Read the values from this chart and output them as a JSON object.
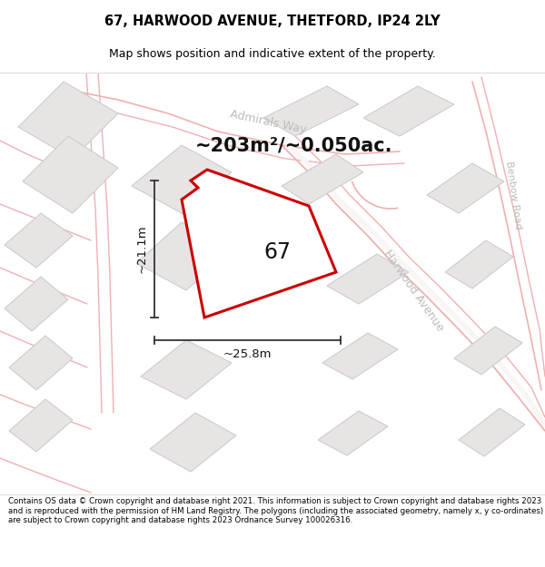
{
  "title": "67, HARWOOD AVENUE, THETFORD, IP24 2LY",
  "subtitle": "Map shows position and indicative extent of the property.",
  "area_label": "~203m²/~0.050ac.",
  "number_label": "67",
  "dim_width": "~25.8m",
  "dim_height": "~21.1m",
  "footer": "Contains OS data © Crown copyright and database right 2021. This information is subject to Crown copyright and database rights 2023 and is reproduced with the permission of HM Land Registry. The polygons (including the associated geometry, namely x, y co-ordinates) are subject to Crown copyright and database rights 2023 Ordnance Survey 100026316.",
  "bg_color": "#ffffff",
  "map_bg": "#f7f5f5",
  "building_fill": "#e8e4e4",
  "building_edge": "#cccccc",
  "road_line": "#f0b0b0",
  "road_fill": "#f5e0e0",
  "red_outline": "#cc0000",
  "dim_line_color": "#333333",
  "text_color": "#111111",
  "street_color": "#bbbbbb",
  "title_fontsize": 10.5,
  "subtitle_fontsize": 9,
  "footer_fontsize": 6.2,
  "area_fontsize": 15,
  "number_fontsize": 17,
  "dim_fontsize": 9.5,
  "street_fontsize": 9
}
